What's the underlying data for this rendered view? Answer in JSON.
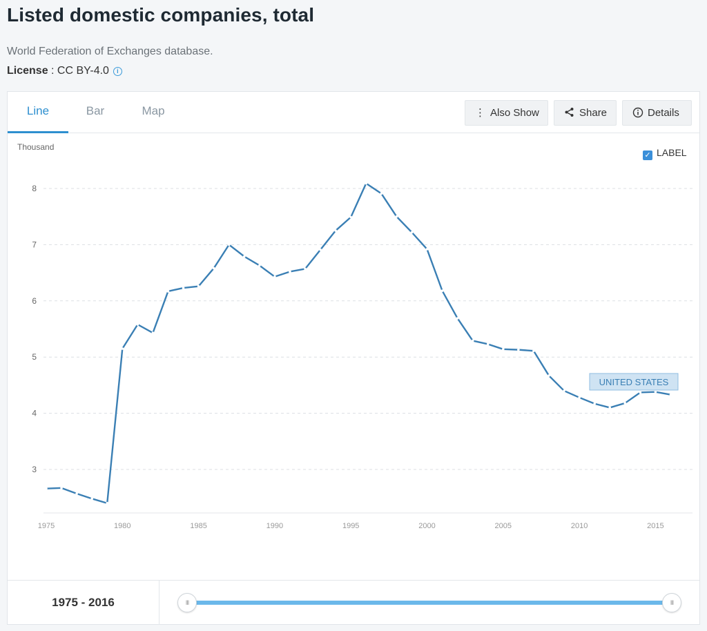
{
  "header": {
    "title": "Listed domestic companies, total",
    "source": "World Federation of Exchanges database.",
    "license_label": "License",
    "license_value": " : CC BY-4.0",
    "info_icon": "info-icon"
  },
  "tabs": [
    {
      "label": "Line",
      "active": true
    },
    {
      "label": "Bar",
      "active": false
    },
    {
      "label": "Map",
      "active": false
    }
  ],
  "toolbar": {
    "also_show_label": "Also Show",
    "also_show_icon": "vertical-dots-icon",
    "share_label": "Share",
    "share_icon": "share-icon",
    "details_label": "Details",
    "details_icon": "info-icon"
  },
  "label_toggle": {
    "label": "LABEL",
    "checked": true
  },
  "chart_data": {
    "type": "line",
    "unit_label": "Thousand",
    "x": [
      1975,
      1976,
      1977,
      1978,
      1979,
      1980,
      1981,
      1982,
      1983,
      1984,
      1985,
      1986,
      1987,
      1988,
      1989,
      1990,
      1991,
      1992,
      1993,
      1994,
      1995,
      1996,
      1997,
      1998,
      1999,
      2000,
      2001,
      2002,
      2003,
      2004,
      2005,
      2006,
      2007,
      2008,
      2009,
      2010,
      2011,
      2012,
      2013,
      2014,
      2015,
      2016
    ],
    "series": [
      {
        "name": "UNITED STATES",
        "color": "#3a7fb4",
        "values": [
          2.66,
          2.67,
          2.57,
          2.48,
          2.4,
          5.15,
          5.58,
          5.43,
          6.17,
          6.23,
          6.26,
          6.58,
          7.0,
          6.79,
          6.63,
          6.43,
          6.52,
          6.57,
          6.91,
          7.25,
          7.49,
          8.09,
          7.91,
          7.5,
          7.22,
          6.92,
          6.18,
          5.69,
          5.29,
          5.23,
          5.14,
          5.13,
          5.11,
          4.67,
          4.4,
          4.28,
          4.17,
          4.1,
          4.18,
          4.37,
          4.38,
          4.33
        ]
      }
    ],
    "x_ticks": [
      1975,
      1980,
      1985,
      1990,
      1995,
      2000,
      2005,
      2010,
      2015
    ],
    "y_ticks": [
      3,
      4,
      5,
      6,
      7,
      8
    ],
    "ylim": [
      2.2,
      8.4
    ],
    "xlim": [
      1975,
      2016
    ],
    "grid": true,
    "label_visible": true
  },
  "range": {
    "text": "1975 - 2016"
  }
}
